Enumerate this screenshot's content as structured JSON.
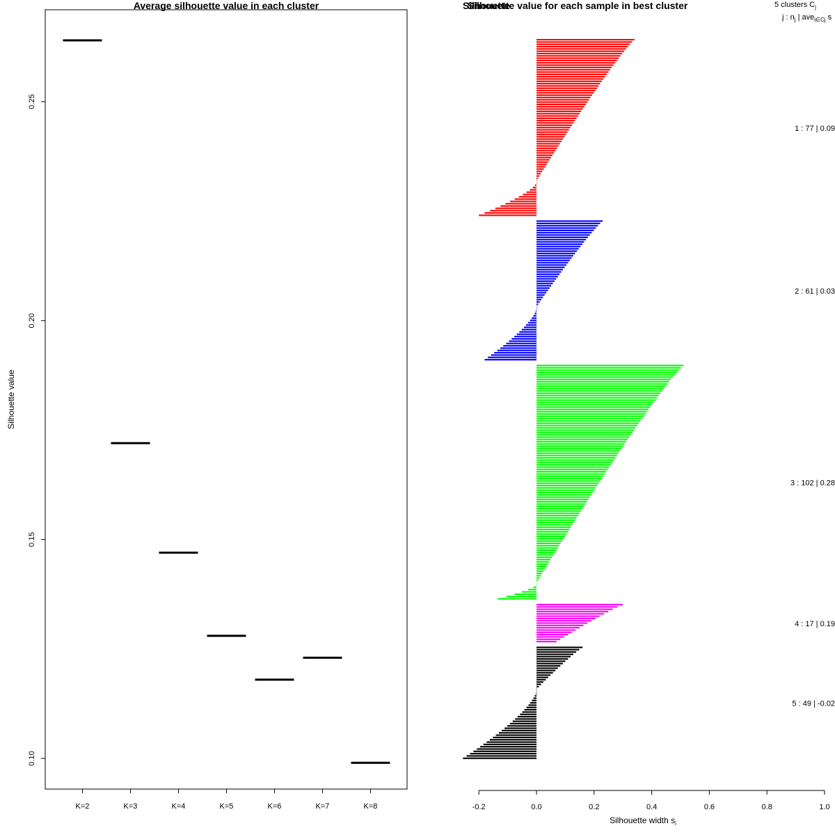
{
  "chart_data": [
    {
      "type": "line",
      "title": "Average silhouette value in each cluster",
      "xlabel": "",
      "ylabel": "Silhouette value",
      "categories": [
        "K=2",
        "K=3",
        "K=4",
        "K=5",
        "K=6",
        "K=7",
        "K=8"
      ],
      "values": [
        0.264,
        0.172,
        0.147,
        0.128,
        0.118,
        0.123,
        0.099
      ],
      "ylim": [
        0.093,
        0.271
      ],
      "yticks": [
        "0.10",
        "0.15",
        "0.20",
        "0.25"
      ],
      "ytick_values": [
        0.1,
        0.15,
        0.2,
        0.25
      ]
    },
    {
      "type": "bar",
      "title": "Silhouette value for each sample in best cluster",
      "overlay_text": "Silhouette",
      "xlabel": "Silhouette width s",
      "xlabel_sub": "i",
      "xlim": [
        -0.25,
        1.0
      ],
      "xticks": [
        "-0.2",
        "0.0",
        "0.2",
        "0.4",
        "0.6",
        "0.8",
        "1.0"
      ],
      "xtick_values": [
        -0.2,
        0.0,
        0.2,
        0.4,
        0.6,
        0.8,
        1.0
      ],
      "legend_header": "5  clusters  C",
      "legend_header_sub": "j",
      "legend_subheader": "j :  n",
      "legend_subheader_sub": "j",
      "legend_subheader_rest": " | ave",
      "legend_subheader_sub2": "i∈Cj",
      "legend_subheader_tail": "  s",
      "clusters": [
        {
          "label": "1 :   77  |  0.09",
          "n": 77,
          "avg": 0.09,
          "color": "#ff0000",
          "max": 0.34,
          "zero_frac": 0.81,
          "min": -0.2
        },
        {
          "label": "2 :   61  |  0.03",
          "n": 61,
          "avg": 0.03,
          "color": "#0000ff",
          "max": 0.23,
          "zero_frac": 0.62,
          "min": -0.18
        },
        {
          "label": "3 :  102  |  0.28",
          "n": 102,
          "avg": 0.28,
          "color": "#00ff00",
          "max": 0.51,
          "zero_frac": 0.93,
          "min": -0.135
        },
        {
          "label": "4 :   17  |  0.19",
          "n": 17,
          "avg": 0.19,
          "color": "#ff00ff",
          "max": 0.3,
          "zero_frac": 1.0,
          "min": 0.07
        },
        {
          "label": "5 :   49  |  -0.02",
          "n": 49,
          "avg": -0.02,
          "color": "#000000",
          "max": 0.16,
          "zero_frac": 0.38,
          "min": -0.255
        }
      ]
    }
  ]
}
